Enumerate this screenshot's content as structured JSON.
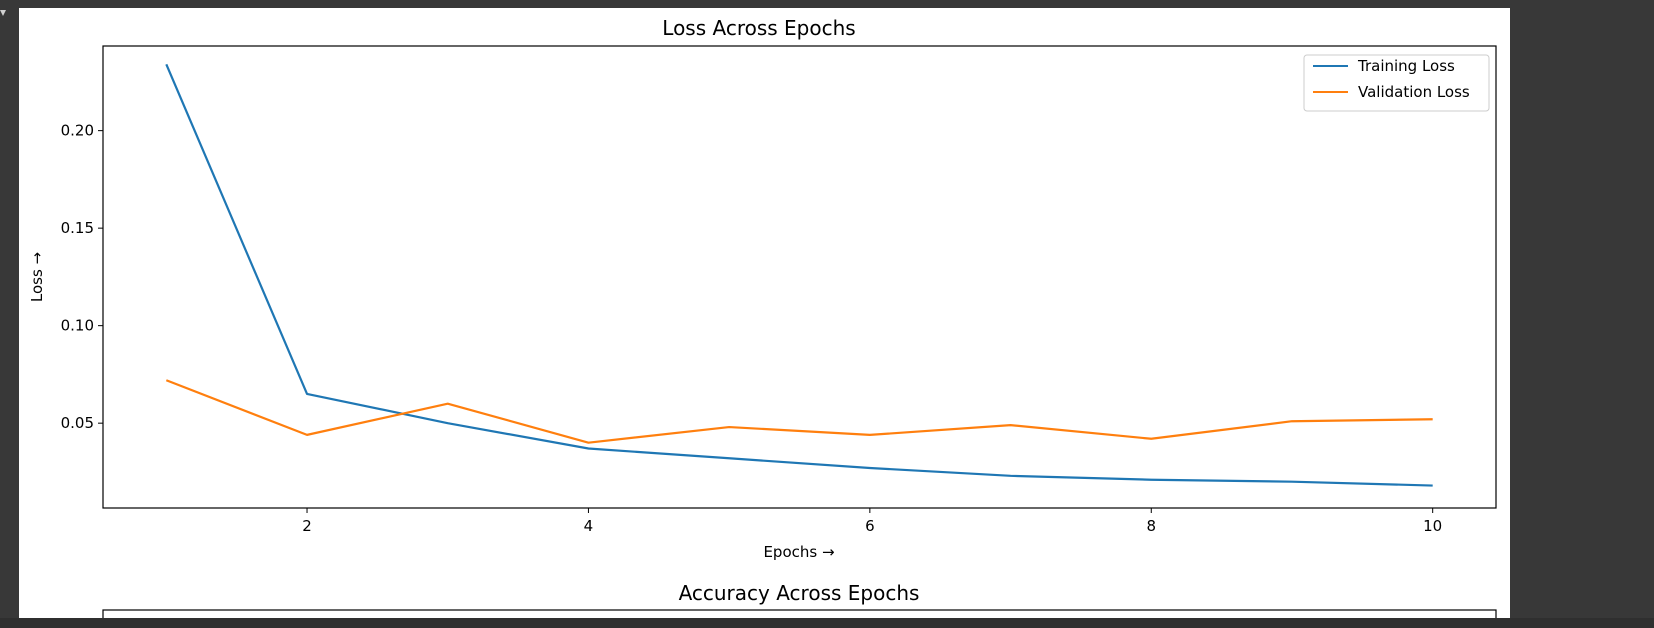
{
  "colors": {
    "background": "#383838",
    "figure": "#ffffff",
    "training": "#1f77b4",
    "validation": "#ff7f0e"
  },
  "chart_data": [
    {
      "type": "line",
      "title": "Loss Across Epochs",
      "xlabel": "Epochs →",
      "ylabel": "Loss →",
      "x": [
        1,
        2,
        3,
        4,
        5,
        6,
        7,
        8,
        9,
        10
      ],
      "xlim": [
        0.55,
        10.45
      ],
      "ylim": [
        0.0065,
        0.2434
      ],
      "xticks": [
        2,
        4,
        6,
        8,
        10
      ],
      "yticks": [
        0.05,
        0.1,
        0.15,
        0.2
      ],
      "ytick_labels": [
        "0.05",
        "0.10",
        "0.15",
        "0.20"
      ],
      "legend_position": "top-right",
      "grid": false,
      "series": [
        {
          "name": "Training Loss",
          "color": "#1f77b4",
          "values": [
            0.234,
            0.065,
            0.05,
            0.037,
            0.032,
            0.027,
            0.023,
            0.021,
            0.02,
            0.018
          ]
        },
        {
          "name": "Validation Loss",
          "color": "#ff7f0e",
          "values": [
            0.072,
            0.044,
            0.06,
            0.04,
            0.048,
            0.044,
            0.049,
            0.042,
            0.051,
            0.052
          ]
        }
      ]
    },
    {
      "type": "line",
      "title": "Accuracy Across Epochs"
    }
  ]
}
